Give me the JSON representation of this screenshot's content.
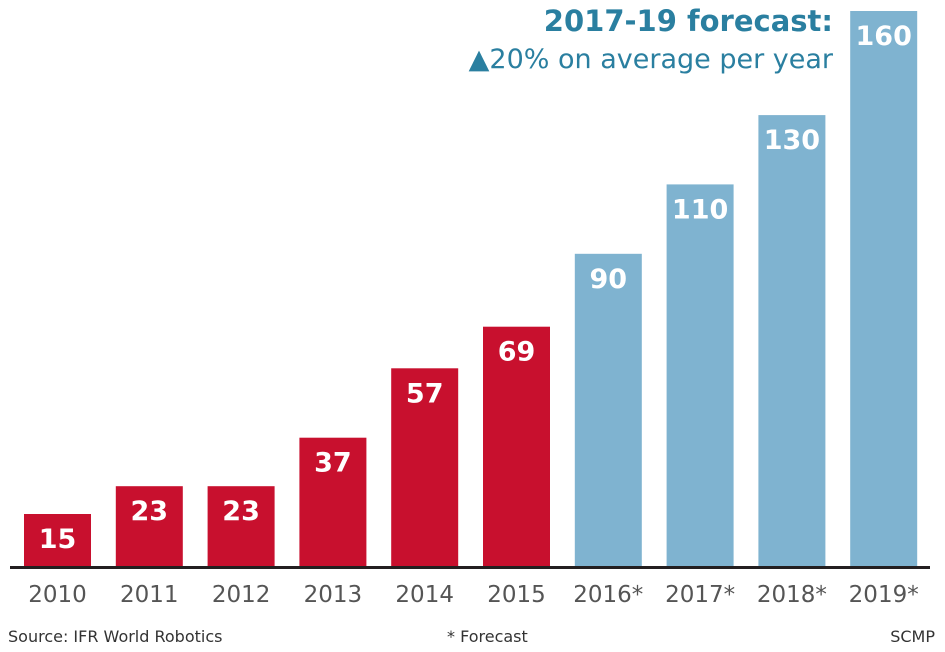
{
  "chart_data": {
    "type": "bar",
    "categories": [
      "2010",
      "2011",
      "2012",
      "2013",
      "2014",
      "2015",
      "2016*",
      "2017*",
      "2018*",
      "2019*"
    ],
    "values": [
      15,
      23,
      23,
      37,
      57,
      69,
      90,
      110,
      130,
      160
    ],
    "data_labels": [
      "15",
      "23",
      "23",
      "37",
      "57",
      "69",
      "90",
      "110",
      "130",
      "160"
    ],
    "forecast_flags": [
      false,
      false,
      false,
      false,
      false,
      false,
      true,
      true,
      true,
      true
    ],
    "title": "2017-19 forecast:",
    "subtitle": "▲20% on average per year",
    "xlabel": "",
    "ylabel": "",
    "ylim": [
      0,
      160
    ],
    "grid": false,
    "legend": "none",
    "colors": {
      "actual": "#c8102e",
      "forecast": "#7fb3d0",
      "baseline": "#231f20",
      "title": "#2a7fa0",
      "label": "#ffffff",
      "tick": "#555555"
    }
  },
  "footer": {
    "source": "Source: IFR World Robotics",
    "note": "* Forecast",
    "credit": "SCMP"
  }
}
